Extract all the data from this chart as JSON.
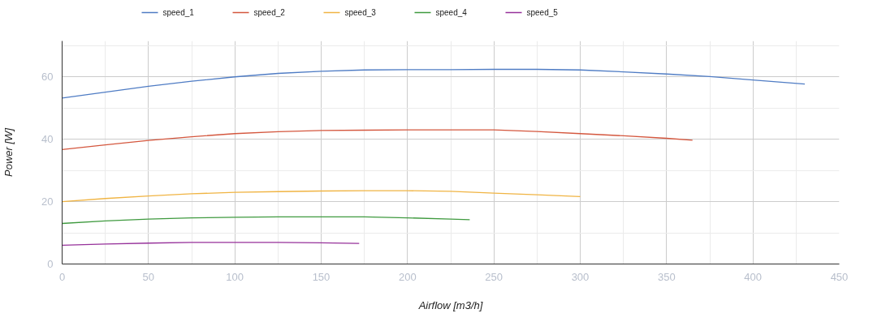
{
  "chart_data": {
    "type": "line",
    "xlabel": "Airflow [m3/h]",
    "ylabel": "Power [W]",
    "xlim": [
      0,
      450
    ],
    "xticks": [
      0,
      50,
      100,
      150,
      200,
      250,
      300,
      350,
      400,
      450
    ],
    "ylim": [
      0,
      71.5
    ],
    "yticks": [
      0,
      20,
      40,
      60
    ],
    "grid": true,
    "legend": "top left",
    "line_style": "solid",
    "series": [
      {
        "name": "speed_1",
        "color": "#4f7cc4",
        "x": [
          0,
          25,
          50,
          75,
          100,
          125,
          150,
          175,
          200,
          225,
          250,
          275,
          300,
          325,
          350,
          375,
          400,
          430
        ],
        "values": [
          53.2,
          55.1,
          57,
          58.6,
          60,
          61.1,
          61.8,
          62.2,
          62.3,
          62.3,
          62.4,
          62.4,
          62.2,
          61.6,
          60.9,
          60.1,
          59,
          57.7
        ]
      },
      {
        "name": "speed_2",
        "color": "#d4573e",
        "x": [
          0,
          25,
          50,
          75,
          100,
          125,
          150,
          175,
          200,
          225,
          250,
          275,
          300,
          325,
          350,
          365
        ],
        "values": [
          36.7,
          38.2,
          39.6,
          40.8,
          41.8,
          42.4,
          42.8,
          42.9,
          43,
          43,
          43,
          42.5,
          41.8,
          41.1,
          40.3,
          39.7
        ]
      },
      {
        "name": "speed_3",
        "color": "#f0b443",
        "x": [
          0,
          25,
          50,
          75,
          100,
          125,
          150,
          175,
          200,
          225,
          250,
          275,
          300
        ],
        "values": [
          20,
          21,
          21.8,
          22.5,
          23,
          23.2,
          23.4,
          23.5,
          23.5,
          23.3,
          22.7,
          22.2,
          21.6
        ]
      },
      {
        "name": "speed_4",
        "color": "#3f9a3f",
        "x": [
          0,
          25,
          50,
          75,
          100,
          125,
          150,
          175,
          200,
          225,
          236
        ],
        "values": [
          13,
          13.8,
          14.4,
          14.8,
          15,
          15.1,
          15.1,
          15.1,
          14.8,
          14.4,
          14.2
        ]
      },
      {
        "name": "speed_5",
        "color": "#96319a",
        "x": [
          0,
          25,
          50,
          75,
          100,
          125,
          150,
          172
        ],
        "values": [
          6,
          6.4,
          6.7,
          6.9,
          6.9,
          6.9,
          6.8,
          6.6
        ]
      }
    ]
  }
}
